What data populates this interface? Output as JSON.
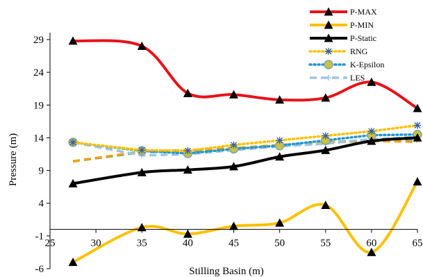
{
  "chart_data": {
    "type": "line",
    "xlabel": "Stilling Basin (m)",
    "ylabel": "Pressure (m)",
    "xlim": [
      25,
      65
    ],
    "ylim": [
      -6,
      29
    ],
    "xticks": [
      25,
      30,
      35,
      40,
      45,
      50,
      55,
      60,
      65
    ],
    "yticks": [
      -6,
      -1,
      4,
      9,
      14,
      19,
      24,
      29
    ],
    "grid": false,
    "legend_position": "top-right",
    "series": [
      {
        "name": "P-MAX",
        "color": "#e8121a",
        "style": "solid",
        "marker": "triangle",
        "x": [
          27.5,
          35,
          40,
          45,
          50,
          55,
          60,
          65
        ],
        "y": [
          28.8,
          28.0,
          20.8,
          20.6,
          19.8,
          20.1,
          22.5,
          18.5
        ]
      },
      {
        "name": "P-MIN",
        "color": "#ffc000",
        "style": "solid",
        "marker": "triangle",
        "x": [
          27.5,
          35,
          40,
          45,
          50,
          55,
          60,
          65
        ],
        "y": [
          -5.0,
          0.3,
          -0.7,
          0.5,
          1.0,
          3.7,
          -3.5,
          7.3
        ]
      },
      {
        "name": "P-Static",
        "color": "#000000",
        "style": "solid",
        "marker": "triangle",
        "x": [
          27.5,
          35,
          40,
          45,
          50,
          55,
          60,
          65
        ],
        "y": [
          7.0,
          8.7,
          9.1,
          9.6,
          11.1,
          12.1,
          13.5,
          14.0
        ]
      },
      {
        "name": "RNG",
        "color": "#ffc000",
        "style": "dotted",
        "marker": "asterisk",
        "x": [
          27.5,
          35,
          40,
          45,
          50,
          55,
          60,
          65
        ],
        "y": [
          13.3,
          12.1,
          12.0,
          12.9,
          13.6,
          14.3,
          15.0,
          15.9
        ]
      },
      {
        "name": "K-Epsilon",
        "color": "#1f97d4",
        "style": "dotted",
        "marker": "circle",
        "x": [
          27.5,
          35,
          40,
          45,
          50,
          55,
          60,
          65
        ],
        "y": [
          13.3,
          12.0,
          11.6,
          12.3,
          12.8,
          13.6,
          14.4,
          14.5
        ]
      },
      {
        "name": "LES",
        "color": "#9dc3e6",
        "style": "dashed",
        "marker": "plus",
        "x": [
          27.5,
          35,
          40,
          45,
          50,
          55,
          60,
          65
        ],
        "y": [
          13.3,
          11.3,
          11.5,
          12.1,
          12.7,
          13.1,
          13.8,
          14.1
        ]
      },
      {
        "name": "",
        "color": "#1b9ad6",
        "style": "dashed",
        "marker": "none",
        "x": [
          27.5,
          35,
          40,
          45,
          50,
          55,
          60,
          65
        ],
        "y": [
          10.4,
          11.8,
          12.0,
          12.3,
          12.8,
          13.3,
          13.6,
          13.5
        ]
      },
      {
        "name": "",
        "color": "#f0a000",
        "style": "dashed",
        "marker": "none",
        "x": [
          27.5,
          35,
          40,
          45,
          50,
          55,
          60,
          65
        ],
        "y": [
          10.4,
          11.9,
          12.1,
          12.4,
          12.9,
          13.3,
          13.5,
          13.4
        ]
      }
    ]
  }
}
